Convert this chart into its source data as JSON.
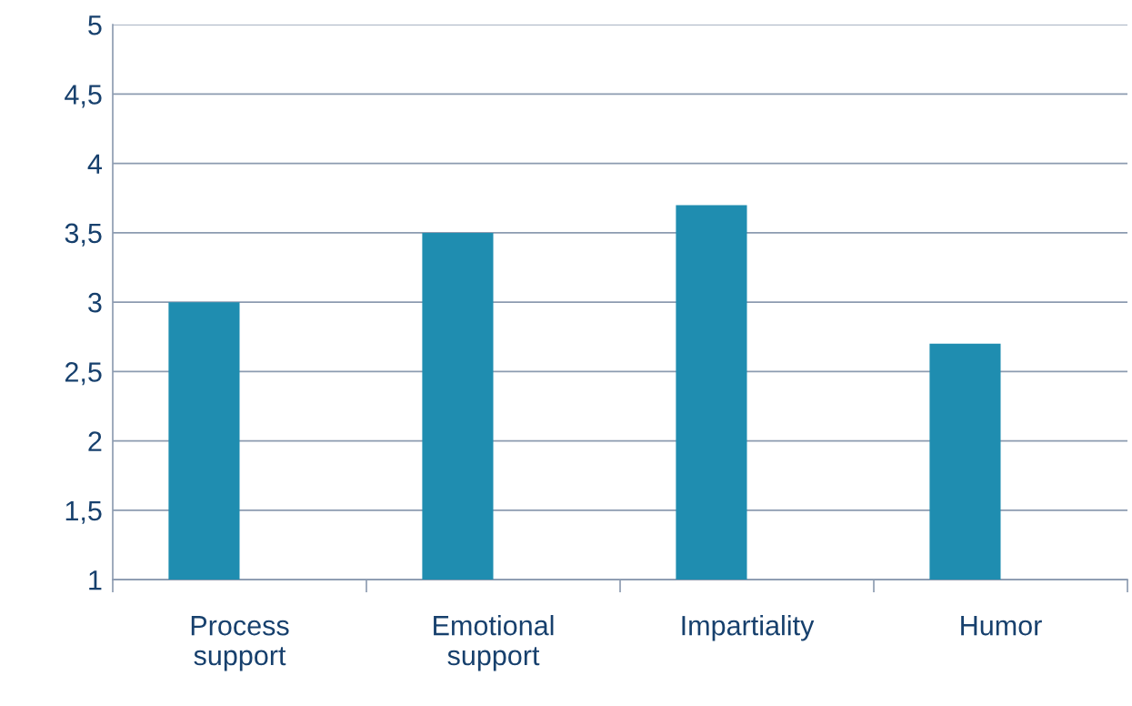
{
  "chart_data": {
    "type": "bar",
    "categories": [
      "Process\nsupport",
      "Emotional\nsupport",
      "Impartiality",
      "Humor"
    ],
    "values": [
      3.0,
      3.5,
      3.7,
      2.7
    ],
    "color": "#1f8db0",
    "ylim": [
      1,
      5
    ],
    "yticks": [
      1,
      {
        "value": 1.5,
        "label": "1,5"
      },
      2,
      {
        "value": 2.5,
        "label": "2,5"
      },
      3,
      {
        "value": 3.5,
        "label": "3,5"
      },
      4,
      {
        "value": 4.5,
        "label": "4,5"
      },
      5
    ],
    "grid": "y"
  }
}
